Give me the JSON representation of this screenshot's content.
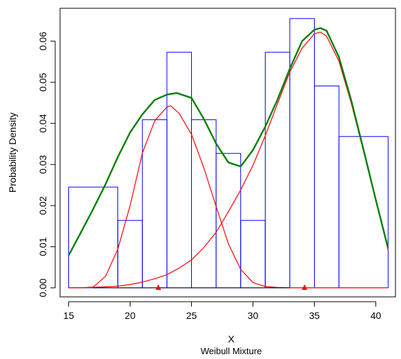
{
  "chart_data": {
    "type": "line",
    "title": "",
    "xlabel": "X",
    "subtitle": "Weibull Mixture",
    "ylabel": "Probability Density",
    "xlim": [
      14.3,
      41.6
    ],
    "ylim": [
      -0.0022,
      0.068
    ],
    "xticks": [
      "15",
      "20",
      "25",
      "30",
      "35",
      "40"
    ],
    "yticks": [
      "0.00",
      "0.01",
      "0.02",
      "0.03",
      "0.04",
      "0.05",
      "0.06"
    ],
    "grid": false,
    "legend": "none",
    "histogram": {
      "color": "#0000ff",
      "bins": [
        {
          "x0": 15,
          "x1": 19,
          "density": 0.0245
        },
        {
          "x0": 19,
          "x1": 21,
          "density": 0.0164
        },
        {
          "x0": 21,
          "x1": 23,
          "density": 0.0409
        },
        {
          "x0": 23,
          "x1": 25,
          "density": 0.0573
        },
        {
          "x0": 25,
          "x1": 27,
          "density": 0.0409
        },
        {
          "x0": 27,
          "x1": 29,
          "density": 0.0327
        },
        {
          "x0": 29,
          "x1": 31,
          "density": 0.0164
        },
        {
          "x0": 31,
          "x1": 33,
          "density": 0.0573
        },
        {
          "x0": 33,
          "x1": 35,
          "density": 0.0655
        },
        {
          "x0": 35,
          "x1": 37,
          "density": 0.0491
        },
        {
          "x0": 37,
          "x1": 41,
          "density": 0.0368
        }
      ]
    },
    "series": [
      {
        "color": "#008000",
        "x": [
          15,
          16,
          17,
          18,
          19,
          20,
          21,
          22,
          23,
          23.8,
          25,
          26,
          27,
          28,
          29,
          30,
          31,
          32,
          33,
          34,
          35,
          35.5,
          36,
          37,
          38,
          39,
          40,
          41
        ],
        "y": [
          0.0079,
          0.0135,
          0.0192,
          0.0252,
          0.0318,
          0.0378,
          0.0422,
          0.0457,
          0.047,
          0.0474,
          0.0462,
          0.0411,
          0.0351,
          0.0305,
          0.0295,
          0.0335,
          0.0392,
          0.0458,
          0.0533,
          0.06,
          0.0628,
          0.0632,
          0.0625,
          0.0561,
          0.0456,
          0.0336,
          0.0214,
          0.0096
        ]
      },
      {
        "color": "#ff0000",
        "x": [
          15,
          16,
          17,
          18,
          19,
          20,
          21,
          22,
          23,
          23.3,
          24,
          25,
          26,
          27,
          28,
          29,
          30,
          31,
          32,
          33,
          34,
          35,
          41
        ],
        "y": [
          0.0,
          0.0,
          0.0002,
          0.0028,
          0.0094,
          0.02,
          0.0328,
          0.0406,
          0.044,
          0.0443,
          0.0424,
          0.0373,
          0.0292,
          0.0198,
          0.0107,
          0.0045,
          0.0013,
          0.0003,
          0.0001,
          0.0,
          0.0,
          0.0,
          0.0
        ]
      },
      {
        "color": "#ff0000",
        "x": [
          15,
          17,
          19,
          20,
          21,
          22,
          23,
          24,
          25,
          26,
          27,
          28,
          29,
          30,
          31,
          32,
          33,
          34,
          35,
          35.5,
          36,
          37,
          38,
          39,
          40,
          41
        ],
        "y": [
          0.0,
          0.0001,
          0.0004,
          0.0008,
          0.0014,
          0.0022,
          0.0032,
          0.0048,
          0.0068,
          0.0098,
          0.0135,
          0.0185,
          0.0238,
          0.0298,
          0.037,
          0.0448,
          0.0525,
          0.0583,
          0.0618,
          0.0622,
          0.0612,
          0.0551,
          0.0449,
          0.0332,
          0.0212,
          0.0092
        ]
      }
    ],
    "markers": [
      {
        "x": 22.3,
        "y": 0.0,
        "color": "#ff0000",
        "shape": "triangle"
      },
      {
        "x": 34.2,
        "y": 0.0,
        "color": "#ff0000",
        "shape": "triangle"
      }
    ],
    "rug": {
      "x0": 17,
      "x1": 33,
      "color": "#000000"
    }
  }
}
